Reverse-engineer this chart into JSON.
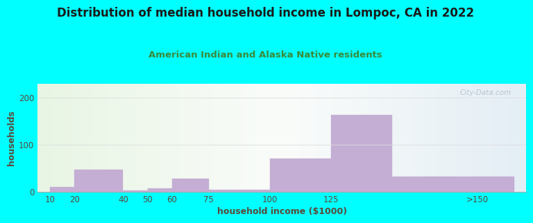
{
  "title": "Distribution of median household income in Lompoc, CA in 2022",
  "subtitle": "American Indian and Alaska Native residents",
  "xlabel": "household income ($1000)",
  "ylabel": "households",
  "watermark": "⭘ City-Data.com",
  "bg_color": "#00FFFF",
  "bar_color": "#c4aed4",
  "bar_edge_color": "#c4aed4",
  "values": [
    10,
    47,
    3,
    8,
    28,
    5,
    70,
    163,
    33
  ],
  "bar_widths": [
    10,
    20,
    10,
    10,
    15,
    25,
    25,
    25,
    50
  ],
  "bar_lefts": [
    10,
    20,
    40,
    50,
    60,
    75,
    100,
    125,
    150
  ],
  "xlim_left": 5,
  "xlim_right": 205,
  "ylim": [
    0,
    230
  ],
  "yticks": [
    0,
    100,
    200
  ],
  "xtick_positions": [
    10,
    20,
    40,
    50,
    60,
    75,
    100,
    125,
    185
  ],
  "xtick_labels": [
    "10",
    "20",
    "40",
    "50",
    "60",
    "75",
    "100",
    "125",
    ">150"
  ],
  "title_fontsize": 12,
  "subtitle_fontsize": 9.5,
  "axis_label_fontsize": 9,
  "tick_fontsize": 8.5,
  "title_color": "#1a1a1a",
  "subtitle_color": "#3a8a3a",
  "tick_color": "#5a4a3a",
  "axis_label_color": "#5a4a3a",
  "grid_color": "#dddddd",
  "plot_bg_left_color": "#e8f5e4",
  "plot_bg_right_color": "#e4eef5"
}
